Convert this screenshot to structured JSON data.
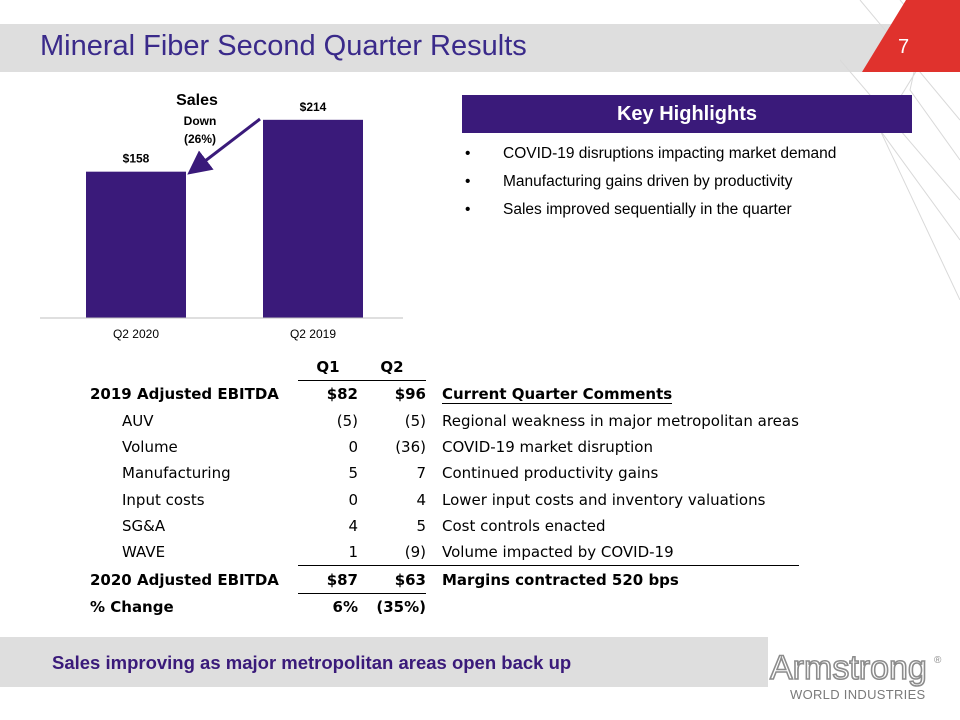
{
  "slide": {
    "title": "Mineral Fiber Second Quarter Results",
    "number": "7"
  },
  "colors": {
    "accent_purple": "#3a1a7a",
    "title_purple": "#3a2a8a",
    "header_gray": "#dedede",
    "corner_red": "#e0322d"
  },
  "chart_data": {
    "type": "bar",
    "categories": [
      "Q2 2020",
      "Q2 2019"
    ],
    "values": [
      158,
      214
    ],
    "value_labels": [
      "$158",
      "$214"
    ],
    "title": "Sales",
    "annotation": [
      "Down",
      "(26%)"
    ],
    "ylim": [
      0,
      230
    ],
    "bar_color": "#3a1a7a",
    "grid": false,
    "legend": "none"
  },
  "highlights": {
    "header": "Key Highlights",
    "bullet_glyph": "•",
    "items": [
      "COVID-19 disruptions impacting market demand",
      "Manufacturing gains driven by productivity",
      "Sales improved sequentially in the quarter"
    ]
  },
  "table": {
    "columns": [
      "Q1",
      "Q2"
    ],
    "comments_header": "Current Quarter Comments",
    "rows": [
      {
        "label": "2019 Adjusted EBITDA",
        "q1": "$82",
        "q2": "$96",
        "comment": "Current Quarter Comments"
      },
      {
        "label": "AUV",
        "q1": "(5)",
        "q2": "(5)",
        "comment": "Regional weakness in major metropolitan areas"
      },
      {
        "label": "Volume",
        "q1": "0",
        "q2": "(36)",
        "comment": "COVID-19 market disruption"
      },
      {
        "label": "Manufacturing",
        "q1": "5",
        "q2": "7",
        "comment": "Continued productivity gains"
      },
      {
        "label": "Input costs",
        "q1": "0",
        "q2": "4",
        "comment": "Lower input costs and inventory valuations"
      },
      {
        "label": "SG&A",
        "q1": "4",
        "q2": "5",
        "comment": "Cost controls enacted"
      },
      {
        "label": "WAVE",
        "q1": "1",
        "q2": "(9)",
        "comment": "Volume impacted by COVID-19"
      },
      {
        "label": "2020 Adjusted EBITDA",
        "q1": "$87",
        "q2": "$63",
        "comment": "Margins contracted 520 bps"
      },
      {
        "label": "% Change",
        "q1": "6%",
        "q2": "(35%)",
        "comment": ""
      }
    ]
  },
  "footer": {
    "text": "Sales improving as major metropolitan areas open back up"
  },
  "logo": {
    "name": "Armstrong",
    "registered": "®",
    "subtitle": "WORLD INDUSTRIES"
  }
}
